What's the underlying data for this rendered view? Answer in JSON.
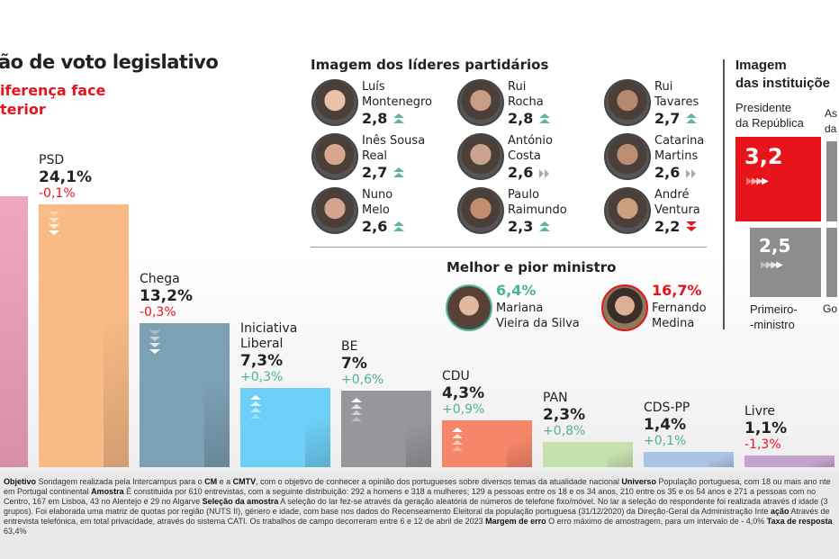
{
  "header": {
    "title": "ão de voto legislativo",
    "subtitle_line1": "iferença face",
    "subtitle_line2": "terior"
  },
  "colors": {
    "negative": "#e4141e",
    "positive": "#4fb38c",
    "ps_bar": "#eba3b9"
  },
  "chart_data": {
    "type": "bar",
    "categories": [
      "PSD",
      "Chega",
      "Iniciativa Liberal",
      "BE",
      "CDU",
      "PAN",
      "CDS-PP",
      "Livre"
    ],
    "values": [
      24.1,
      13.2,
      7.3,
      7,
      4.3,
      2.3,
      1.4,
      1.1
    ],
    "value_labels": [
      "24,1%",
      "13,2%",
      "7,3%",
      "7%",
      "4,3%",
      "2,3%",
      "1,4%",
      "1,1%"
    ],
    "changes": [
      -0.1,
      -0.3,
      0.3,
      0.6,
      0.9,
      0.8,
      0.1,
      -1.3
    ],
    "change_labels": [
      "-0,1%",
      "-0,3%",
      "+0,3%",
      "+0,6%",
      "+0,9%",
      "+0,8%",
      "+0,1%",
      "-1,3%"
    ],
    "colors": [
      "#f9bb86",
      "#7ca0b4",
      "#6dcff5",
      "#97979b",
      "#f5866a",
      "#c5e1ad",
      "#aac2e4",
      "#c2a3cd"
    ],
    "unit": "%"
  },
  "leaders": {
    "title": "Imagem dos líderes partidários",
    "items": [
      {
        "name1": "Luís",
        "name2": "Montenegro",
        "score": "2,8",
        "trend": "up"
      },
      {
        "name1": "Rui",
        "name2": "Rocha",
        "score": "2,8",
        "trend": "up"
      },
      {
        "name1": "Rui",
        "name2": "Tavares",
        "score": "2,7",
        "trend": "up"
      },
      {
        "name1": "Inês Sousa",
        "name2": "Real",
        "score": "2,7",
        "trend": "up"
      },
      {
        "name1": "António",
        "name2": "Costa",
        "score": "2,6",
        "trend": "flat"
      },
      {
        "name1": "Catarina",
        "name2": "Martins",
        "score": "2,6",
        "trend": "flat"
      },
      {
        "name1": "Nuno",
        "name2": "Melo",
        "score": "2,6",
        "trend": "up"
      },
      {
        "name1": "Paulo",
        "name2": "Raimundo",
        "score": "2,3",
        "trend": "up"
      },
      {
        "name1": "André",
        "name2": "Ventura",
        "score": "2,2",
        "trend": "down"
      }
    ]
  },
  "ministers": {
    "title": "Melhor e pior ministro",
    "best": {
      "value": "6,4%",
      "name1": "Mariana",
      "name2": "Vieira da Silva"
    },
    "worst": {
      "value": "16,7%",
      "name1": "Fernando",
      "name2": "Medina"
    }
  },
  "institutions": {
    "title1": "Imagem",
    "title2": "das instituiçõe",
    "president": {
      "label1": "Presidente",
      "label2": "da República",
      "score": "3,2",
      "trend": "flat"
    },
    "pm": {
      "label1": "Primeiro-",
      "label2": "-ministro",
      "score": "2,5",
      "trend": "flat"
    },
    "cut_top_label1": "As",
    "cut_top_label2": "da",
    "cut_bottom_label": "Go"
  },
  "footer": {
    "lines": [
      [
        {
          "b": true,
          "t": "Objetivo"
        },
        {
          "t": " Sondagem realizada pela Intercampus para o "
        },
        {
          "b": true,
          "t": "CM"
        },
        {
          "t": " e a "
        },
        {
          "b": true,
          "t": "CMTV"
        },
        {
          "t": ", com o objetivo de conhecer a opinião dos portugueses sobre diversos temas da atualidade nacional "
        },
        {
          "b": true,
          "t": "Universo"
        },
        {
          "t": " População portuguesa, com 18 ou mais ano"
        }
      ],
      [
        {
          "t": "nte em Portugal continental "
        },
        {
          "b": true,
          "t": "Amostra"
        },
        {
          "t": " É constituida por 610 entrevistas, com a seguinte distribuição: 292 a homens e 318 a mulheres; 129 a pessoas entre os 18 e os 34 anos, 210 entre os 35 e os 54 anos e 271 a pessoas com"
        }
      ],
      [
        {
          "t": "no Centro, 167 em Lisboa, 43 no Alentejo e 29 no Algarve "
        },
        {
          "b": true,
          "t": "Seleção da amostra"
        },
        {
          "t": " A seleção do lar fez-se através da geração aleatória de números de telefone fixo/móvel. No lar a seleção do respondente foi realizada através d"
        }
      ],
      [
        {
          "t": " idade (3 grupos). Foi elaborada uma matriz de quotas por região (NUTS II), género e idade, com base nos dados do Recenseamento Eleitoral da população portuguesa (31/12/2020) da Direção-Geral da Administração Inte"
        }
      ],
      [
        {
          "b": true,
          "t": "ação"
        },
        {
          "t": " Através de entrevista telefónica, em total privacidade, através do sistema CATI. Os trabalhos de campo decorreram entre 6 e 12 de abril de 2023  "
        },
        {
          "b": true,
          "t": "Margem de erro"
        },
        {
          "t": " O erro máximo de amostragem, para um intervalo de"
        }
      ],
      [
        {
          "t": "- 4,0% "
        },
        {
          "b": true,
          "t": "Taxa de resposta"
        },
        {
          "t": " 63,4%"
        }
      ]
    ]
  }
}
